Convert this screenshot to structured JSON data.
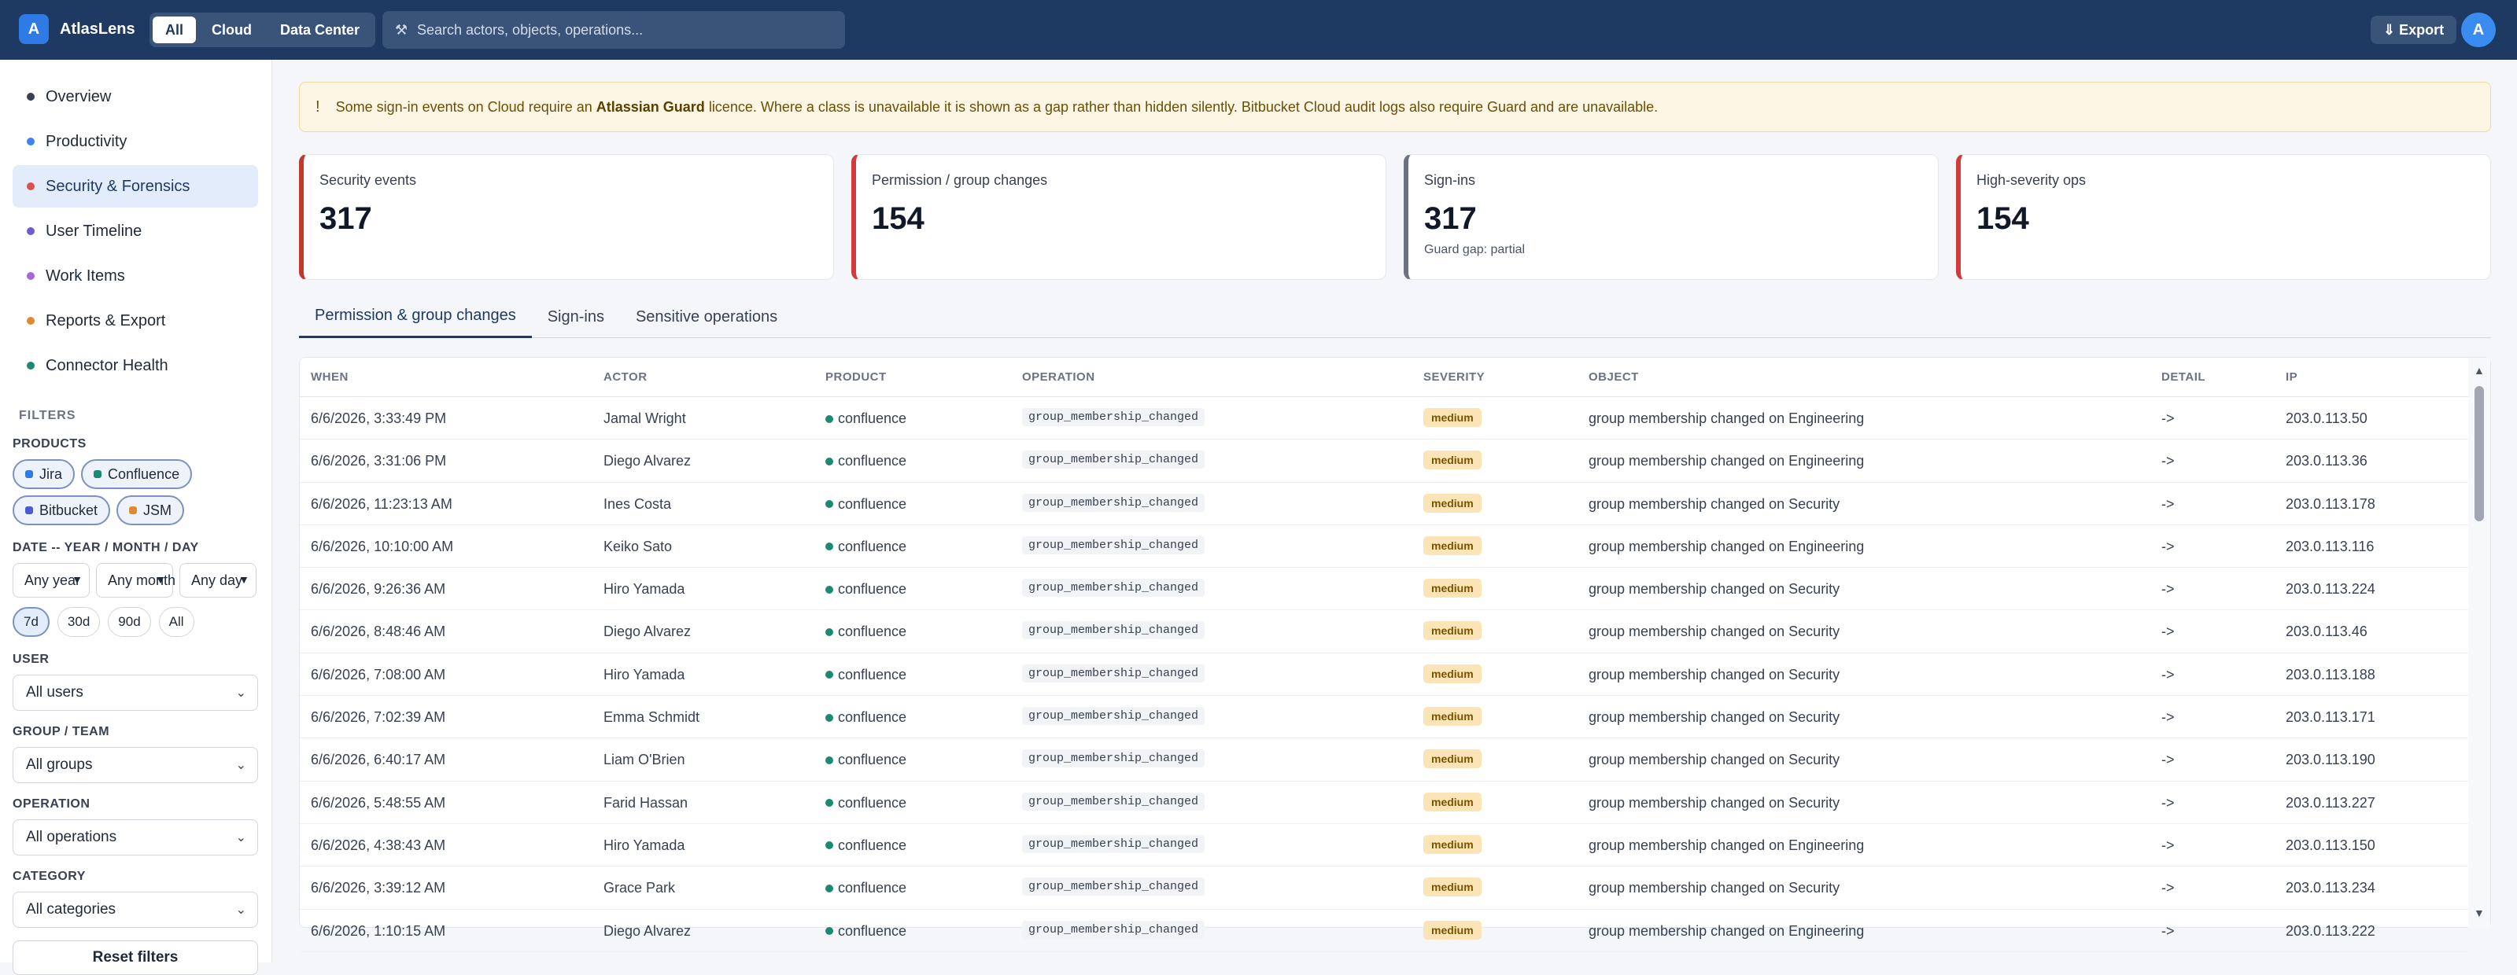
{
  "app": {
    "logo_letter": "A",
    "title": "AtlasLens"
  },
  "scope_tabs": [
    {
      "label": "All",
      "active": true
    },
    {
      "label": "Cloud",
      "active": false
    },
    {
      "label": "Data Center",
      "active": false
    }
  ],
  "search": {
    "placeholder": "Search actors, objects, operations...",
    "icon": "search-icon"
  },
  "header": {
    "export_label": "⇓ Export",
    "avatar_letter": "A"
  },
  "sidebar": {
    "items": [
      {
        "label": "Overview",
        "color": "#374151"
      },
      {
        "label": "Productivity",
        "color": "#3b82f6"
      },
      {
        "label": "Security & Forensics",
        "color": "#d9534f",
        "active": true
      },
      {
        "label": "User Timeline",
        "color": "#6d5bd0"
      },
      {
        "label": "Work Items",
        "color": "#a56ad6"
      },
      {
        "label": "Reports & Export",
        "color": "#e08a2e"
      },
      {
        "label": "Connector Health",
        "color": "#1a8a73"
      }
    ]
  },
  "filters": {
    "title": "FILTERS",
    "products_label": "PRODUCTS",
    "products": [
      {
        "label": "Jira",
        "color": "#2f7be6"
      },
      {
        "label": "Confluence",
        "color": "#1a8a73"
      },
      {
        "label": "Bitbucket",
        "color": "#4a5bd4"
      },
      {
        "label": "JSM",
        "color": "#e08a2e"
      }
    ],
    "date_label": "DATE -- YEAR / MONTH / DAY",
    "year": "Any year",
    "month": "Any month",
    "day": "Any day",
    "ranges": [
      {
        "label": "7d",
        "active": true
      },
      {
        "label": "30d",
        "active": false
      },
      {
        "label": "90d",
        "active": false
      },
      {
        "label": "All",
        "active": false
      }
    ],
    "user_label": "USER",
    "user_value": "All users",
    "group_label": "GROUP / TEAM",
    "group_value": "All groups",
    "operation_label": "OPERATION",
    "operation_value": "All operations",
    "category_label": "CATEGORY",
    "category_value": "All categories",
    "reset_label": "Reset filters"
  },
  "banner": {
    "icon": "!",
    "text_before": "Some sign-in events on Cloud require an ",
    "bold": "Atlassian Guard",
    "text_after": " licence. Where a class is unavailable it is shown as a gap rather than hidden silently. Bitbucket Cloud audit logs also require Guard and are unavailable."
  },
  "stats": [
    {
      "label": "Security events",
      "value": "317",
      "sub": "",
      "accent": "#c0392b"
    },
    {
      "label": "Permission / group changes",
      "value": "154",
      "sub": "",
      "accent": "#d13b3b"
    },
    {
      "label": "Sign-ins",
      "value": "317",
      "sub": "Guard gap: partial",
      "accent": "#6b7280"
    },
    {
      "label": "High-severity ops",
      "value": "154",
      "sub": "",
      "accent": "#d13b3b"
    }
  ],
  "tabs": [
    {
      "label": "Permission & group changes",
      "active": true
    },
    {
      "label": "Sign-ins",
      "active": false
    },
    {
      "label": "Sensitive operations",
      "active": false
    }
  ],
  "table": {
    "columns": [
      "WHEN",
      "ACTOR",
      "PRODUCT",
      "OPERATION",
      "SEVERITY",
      "OBJECT",
      "DETAIL",
      "IP"
    ],
    "rows": [
      {
        "when": "6/6/2026, 3:33:49 PM",
        "actor": "Jamal Wright",
        "product": "confluence",
        "operation": "group_membership_changed",
        "severity": "medium",
        "object": "group membership changed on Engineering",
        "detail": "->",
        "ip": "203.0.113.50"
      },
      {
        "when": "6/6/2026, 3:31:06 PM",
        "actor": "Diego Alvarez",
        "product": "confluence",
        "operation": "group_membership_changed",
        "severity": "medium",
        "object": "group membership changed on Engineering",
        "detail": "->",
        "ip": "203.0.113.36"
      },
      {
        "when": "6/6/2026, 11:23:13 AM",
        "actor": "Ines Costa",
        "product": "confluence",
        "operation": "group_membership_changed",
        "severity": "medium",
        "object": "group membership changed on Security",
        "detail": "->",
        "ip": "203.0.113.178"
      },
      {
        "when": "6/6/2026, 10:10:00 AM",
        "actor": "Keiko Sato",
        "product": "confluence",
        "operation": "group_membership_changed",
        "severity": "medium",
        "object": "group membership changed on Engineering",
        "detail": "->",
        "ip": "203.0.113.116"
      },
      {
        "when": "6/6/2026, 9:26:36 AM",
        "actor": "Hiro Yamada",
        "product": "confluence",
        "operation": "group_membership_changed",
        "severity": "medium",
        "object": "group membership changed on Security",
        "detail": "->",
        "ip": "203.0.113.224"
      },
      {
        "when": "6/6/2026, 8:48:46 AM",
        "actor": "Diego Alvarez",
        "product": "confluence",
        "operation": "group_membership_changed",
        "severity": "medium",
        "object": "group membership changed on Security",
        "detail": "->",
        "ip": "203.0.113.46"
      },
      {
        "when": "6/6/2026, 7:08:00 AM",
        "actor": "Hiro Yamada",
        "product": "confluence",
        "operation": "group_membership_changed",
        "severity": "medium",
        "object": "group membership changed on Security",
        "detail": "->",
        "ip": "203.0.113.188"
      },
      {
        "when": "6/6/2026, 7:02:39 AM",
        "actor": "Emma Schmidt",
        "product": "confluence",
        "operation": "group_membership_changed",
        "severity": "medium",
        "object": "group membership changed on Security",
        "detail": "->",
        "ip": "203.0.113.171"
      },
      {
        "when": "6/6/2026, 6:40:17 AM",
        "actor": "Liam O'Brien",
        "product": "confluence",
        "operation": "group_membership_changed",
        "severity": "medium",
        "object": "group membership changed on Security",
        "detail": "->",
        "ip": "203.0.113.190"
      },
      {
        "when": "6/6/2026, 5:48:55 AM",
        "actor": "Farid Hassan",
        "product": "confluence",
        "operation": "group_membership_changed",
        "severity": "medium",
        "object": "group membership changed on Security",
        "detail": "->",
        "ip": "203.0.113.227"
      },
      {
        "when": "6/6/2026, 4:38:43 AM",
        "actor": "Hiro Yamada",
        "product": "confluence",
        "operation": "group_membership_changed",
        "severity": "medium",
        "object": "group membership changed on Engineering",
        "detail": "->",
        "ip": "203.0.113.150"
      },
      {
        "when": "6/6/2026, 3:39:12 AM",
        "actor": "Grace Park",
        "product": "confluence",
        "operation": "group_membership_changed",
        "severity": "medium",
        "object": "group membership changed on Security",
        "detail": "->",
        "ip": "203.0.113.234"
      },
      {
        "when": "6/6/2026, 1:10:15 AM",
        "actor": "Diego Alvarez",
        "product": "confluence",
        "operation": "group_membership_changed",
        "severity": "medium",
        "object": "group membership changed on Engineering",
        "detail": "->",
        "ip": "203.0.113.222"
      }
    ]
  }
}
